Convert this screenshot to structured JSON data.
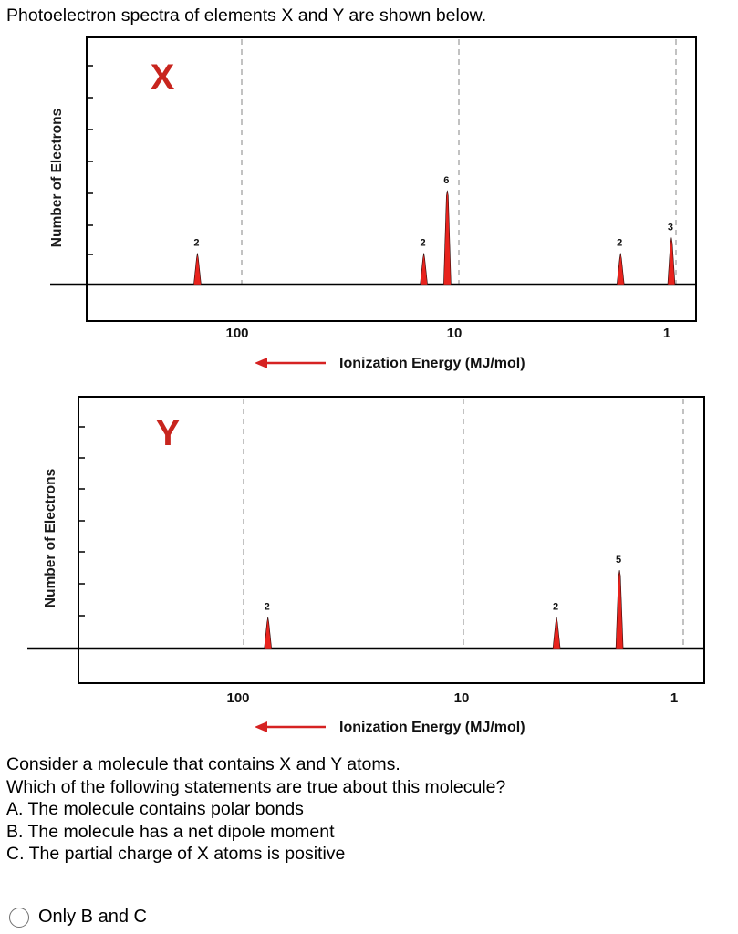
{
  "question": {
    "title": "Photoelectron spectra of elements X and Y are shown below.",
    "body_lines": [
      "Consider a molecule that contains X and Y atoms.",
      "Which of the following statements are true about this molecule?",
      "A. The molecule contains polar bonds",
      "B. The molecule has a net dipole moment",
      "C. The partial charge of X atoms is positive"
    ]
  },
  "answer_options": [
    {
      "label": "Only B and C",
      "selected": false
    }
  ],
  "colors": {
    "peak_fill": "#e8231d",
    "element_label": "#c8251e",
    "axis_label": "#1a1a1a",
    "arrow": "#d62222",
    "gridline": "#9a9a9a"
  },
  "chart_data": [
    {
      "type": "bar",
      "element_label": "X",
      "ylabel": "Number of Electrons",
      "xlabel": "Ionization Energy (MJ/mol)",
      "x_scale": "log",
      "x_direction": "decreasing-left-to-right",
      "xlim": [
        300,
        1
      ],
      "x_ticks": [
        100,
        10,
        1
      ],
      "grid": "vertical dashed at ticks",
      "ylim": [
        0,
        8
      ],
      "peaks": [
        {
          "x": 160,
          "value": 2
        },
        {
          "x": 14.5,
          "value": 2
        },
        {
          "x": 11.3,
          "value": 6
        },
        {
          "x": 1.8,
          "value": 2
        },
        {
          "x": 1.05,
          "value": 3
        }
      ]
    },
    {
      "type": "bar",
      "element_label": "Y",
      "ylabel": "Number of Electrons",
      "xlabel": "Ionization Energy (MJ/mol)",
      "x_scale": "log",
      "x_direction": "decreasing-left-to-right",
      "xlim": [
        300,
        1
      ],
      "x_ticks": [
        100,
        10,
        1
      ],
      "grid": "vertical dashed at ticks",
      "ylim": [
        0,
        8
      ],
      "peaks": [
        {
          "x": 77.5,
          "value": 2
        },
        {
          "x": 3.77,
          "value": 2
        },
        {
          "x": 1.95,
          "value": 5
        }
      ]
    }
  ]
}
